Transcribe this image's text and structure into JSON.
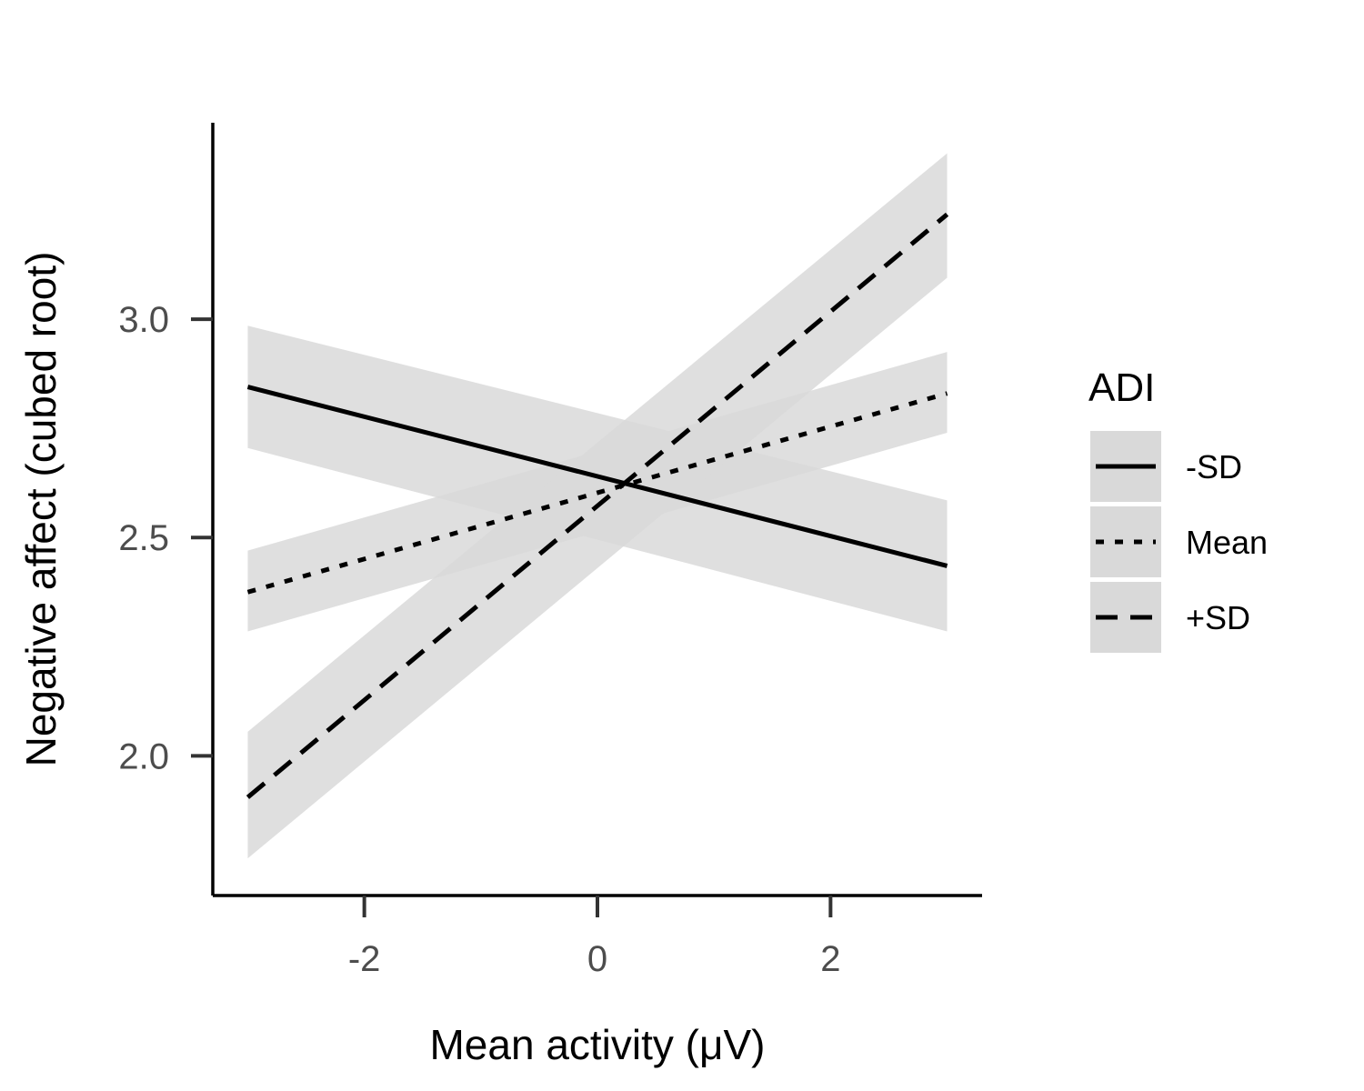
{
  "chart_data": {
    "type": "line",
    "xlabel": "Mean activity (μV)",
    "ylabel": "Negative affect (cubed root)",
    "xlim": [
      -3.3,
      3.3
    ],
    "ylim": [
      1.68,
      3.45
    ],
    "x_ticks": [
      -2,
      0,
      2
    ],
    "x_tick_labels": [
      "-2",
      "0",
      "2"
    ],
    "y_ticks": [
      2.0,
      2.5,
      3.0
    ],
    "y_tick_labels": [
      "2.0",
      "2.5",
      "3.0"
    ],
    "grid": false,
    "legend": {
      "title": "ADI",
      "position": "right"
    },
    "series": [
      {
        "name": "-SD",
        "linestyle": "solid",
        "x": [
          -3,
          3
        ],
        "y": [
          2.845,
          2.435
        ],
        "lower": [
          2.705,
          2.285
        ],
        "upper": [
          2.985,
          2.585
        ]
      },
      {
        "name": "Mean",
        "linestyle": "dotted",
        "x": [
          -3,
          3
        ],
        "y": [
          2.375,
          2.83
        ],
        "lower": [
          2.285,
          2.74
        ],
        "upper": [
          2.47,
          2.925
        ]
      },
      {
        "name": "+SD",
        "linestyle": "dashed",
        "x": [
          -3,
          3
        ],
        "y": [
          1.905,
          3.24
        ],
        "lower": [
          1.765,
          3.095
        ],
        "upper": [
          2.055,
          3.38
        ]
      }
    ],
    "colors": {
      "line": "#000000",
      "band": "#d9d9d9",
      "axis": "#000000",
      "tick_text": "#4d4d4d"
    }
  }
}
